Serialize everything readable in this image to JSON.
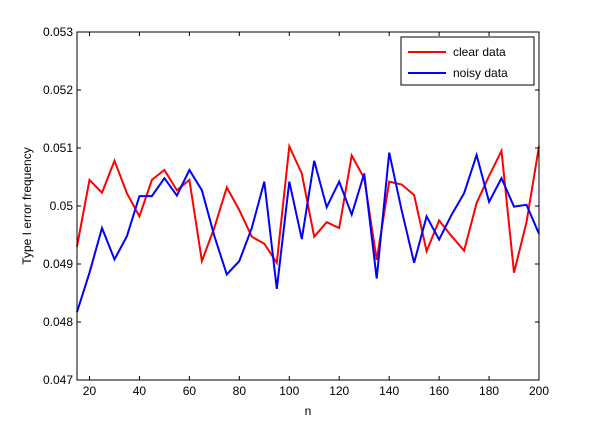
{
  "chart_data": {
    "type": "line",
    "xlabel": "n",
    "ylabel": "Type I error frequency",
    "xlim": [
      15,
      200
    ],
    "ylim": [
      0.047,
      0.053
    ],
    "xticks": [
      20,
      40,
      60,
      80,
      100,
      120,
      140,
      160,
      180,
      200
    ],
    "yticks": [
      0.047,
      0.048,
      0.049,
      0.05,
      0.051,
      0.052,
      0.053
    ],
    "ytick_labels": [
      "0.047",
      "0.048",
      "0.049",
      "0.05",
      "0.051",
      "0.052",
      "0.053"
    ],
    "grid": false,
    "legend_position": "top-right",
    "series": [
      {
        "name": "clear data",
        "color": "#ff0000",
        "x": [
          15,
          20,
          25,
          30,
          35,
          40,
          45,
          50,
          55,
          60,
          65,
          70,
          75,
          80,
          85,
          90,
          95,
          100,
          105,
          110,
          115,
          120,
          125,
          130,
          135,
          140,
          145,
          150,
          155,
          160,
          165,
          170,
          175,
          180,
          185,
          190,
          195,
          200
        ],
        "y": [
          0.0493,
          0.05045,
          0.05023,
          0.05078,
          0.05022,
          0.04982,
          0.05045,
          0.05062,
          0.05027,
          0.05045,
          0.04905,
          0.04963,
          0.05032,
          0.04993,
          0.04947,
          0.04935,
          0.04902,
          0.05103,
          0.05056,
          0.04947,
          0.04972,
          0.04962,
          0.05087,
          0.05048,
          0.04907,
          0.05042,
          0.05037,
          0.05019,
          0.04922,
          0.04975,
          0.04948,
          0.04923,
          0.05005,
          0.05052,
          0.05095,
          0.04885,
          0.04972,
          0.05103
        ]
      },
      {
        "name": "noisy data",
        "color": "#0000ff",
        "x": [
          15,
          20,
          25,
          30,
          35,
          40,
          45,
          50,
          55,
          60,
          65,
          70,
          75,
          80,
          85,
          90,
          95,
          100,
          105,
          110,
          115,
          120,
          125,
          130,
          135,
          140,
          145,
          150,
          155,
          160,
          165,
          170,
          175,
          180,
          185,
          190,
          195,
          200
        ],
        "y": [
          0.04817,
          0.04885,
          0.04962,
          0.04908,
          0.04948,
          0.05017,
          0.05017,
          0.05048,
          0.05018,
          0.05062,
          0.05027,
          0.04948,
          0.04882,
          0.04905,
          0.04962,
          0.05042,
          0.04857,
          0.05042,
          0.04943,
          0.05078,
          0.04998,
          0.05042,
          0.04985,
          0.05056,
          0.04875,
          0.05092,
          0.04993,
          0.04902,
          0.04982,
          0.04942,
          0.04985,
          0.05022,
          0.05088,
          0.05007,
          0.05048,
          0.04999,
          0.05002,
          0.04952
        ]
      }
    ]
  }
}
